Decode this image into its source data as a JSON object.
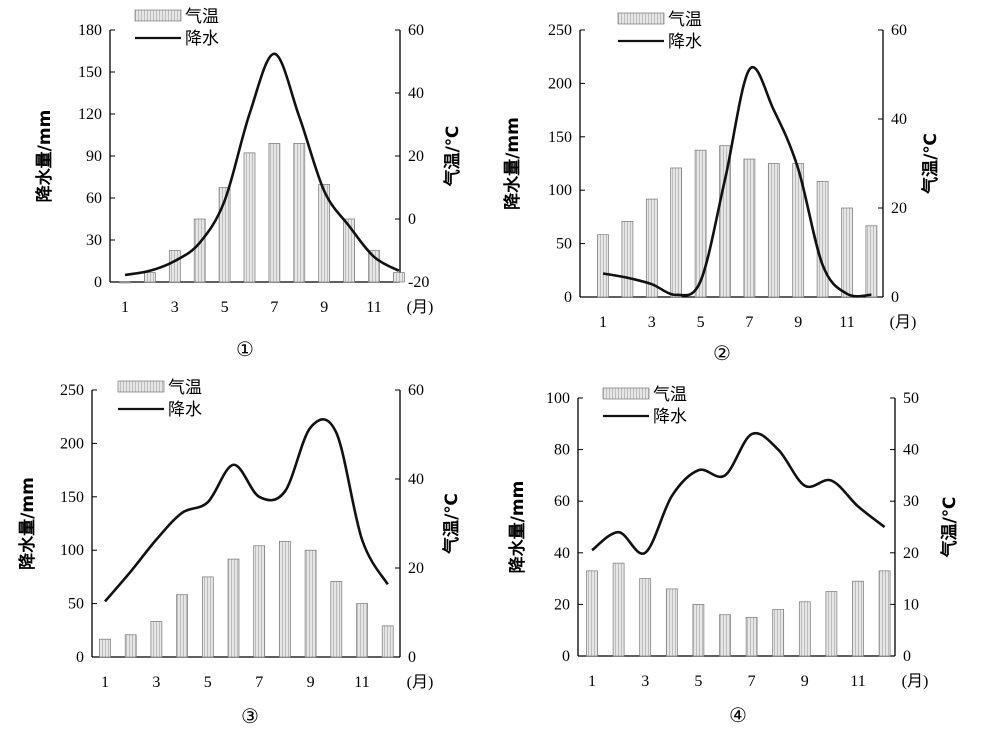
{
  "chart_data": [
    {
      "type": "bar",
      "panel_label": "①",
      "legend": {
        "temp": "气温",
        "precip": "降水",
        "placement": "top-left"
      },
      "ylabel_left": "降水量/mm",
      "ylabel_right": "气温/℃",
      "x_unit_label": "(月)",
      "x_tick_labels": [
        "1",
        "3",
        "5",
        "7",
        "9",
        "11"
      ],
      "left_ticks": [
        "0",
        "30",
        "60",
        "90",
        "120",
        "150",
        "180"
      ],
      "right_ticks": [
        "-20",
        "0",
        "20",
        "40",
        "60"
      ],
      "ylim_left": [
        0,
        180
      ],
      "ylim_right": [
        -20,
        60
      ],
      "months": [
        1,
        2,
        3,
        4,
        5,
        6,
        7,
        8,
        9,
        10,
        11,
        12
      ],
      "series": [
        {
          "name": "气温",
          "kind": "bar",
          "axis": "right",
          "values": [
            -20,
            -17,
            -10,
            0,
            10,
            21,
            24,
            24,
            11,
            0,
            -10,
            -17
          ]
        },
        {
          "name": "降水",
          "kind": "line",
          "axis": "left",
          "values": [
            5,
            8,
            15,
            28,
            58,
            120,
            163,
            118,
            65,
            40,
            18,
            8
          ]
        }
      ]
    },
    {
      "type": "bar",
      "panel_label": "②",
      "legend": {
        "temp": "气温",
        "precip": "降水",
        "placement": "top-left"
      },
      "ylabel_left": "降水量/mm",
      "ylabel_right": "气温/℃",
      "x_unit_label": "(月)",
      "x_tick_labels": [
        "1",
        "3",
        "5",
        "7",
        "9",
        "11"
      ],
      "left_ticks": [
        "0",
        "50",
        "100",
        "150",
        "200",
        "250"
      ],
      "right_ticks": [
        "0",
        "20",
        "40",
        "60"
      ],
      "ylim_left": [
        0,
        250
      ],
      "ylim_right": [
        0,
        60
      ],
      "months": [
        1,
        2,
        3,
        4,
        5,
        6,
        7,
        8,
        9,
        10,
        11,
        12
      ],
      "series": [
        {
          "name": "气温",
          "kind": "bar",
          "axis": "right",
          "values": [
            14,
            17,
            22,
            29,
            33,
            34,
            31,
            30,
            30,
            26,
            20,
            16
          ]
        },
        {
          "name": "降水",
          "kind": "line",
          "axis": "left",
          "values": [
            22,
            18,
            12,
            2,
            15,
            110,
            213,
            175,
            120,
            30,
            3,
            2
          ]
        }
      ]
    },
    {
      "type": "bar",
      "panel_label": "③",
      "legend": {
        "temp": "气温",
        "precip": "降水",
        "placement": "top-left"
      },
      "ylabel_left": "降水量/mm",
      "ylabel_right": "气温/℃",
      "x_unit_label": "(月)",
      "x_tick_labels": [
        "1",
        "3",
        "5",
        "7",
        "9",
        "11"
      ],
      "left_ticks": [
        "0",
        "50",
        "100",
        "150",
        "200",
        "250"
      ],
      "right_ticks": [
        "0",
        "20",
        "40",
        "60"
      ],
      "ylim_left": [
        0,
        250
      ],
      "ylim_right": [
        0,
        60
      ],
      "months": [
        1,
        2,
        3,
        4,
        5,
        6,
        7,
        8,
        9,
        10,
        11,
        12
      ],
      "series": [
        {
          "name": "气温",
          "kind": "bar",
          "axis": "right",
          "values": [
            4,
            5,
            8,
            14,
            18,
            22,
            25,
            26,
            24,
            17,
            12,
            7
          ]
        },
        {
          "name": "降水",
          "kind": "line",
          "axis": "left",
          "values": [
            52,
            80,
            110,
            135,
            145,
            180,
            150,
            155,
            215,
            210,
            110,
            68
          ]
        }
      ]
    },
    {
      "type": "bar",
      "panel_label": "④",
      "legend": {
        "temp": "气温",
        "precip": "降水",
        "placement": "top-left"
      },
      "ylabel_left": "降水量/mm",
      "ylabel_right": "气温/℃",
      "x_unit_label": "(月)",
      "x_tick_labels": [
        "1",
        "3",
        "5",
        "7",
        "9",
        "11"
      ],
      "left_ticks": [
        "0",
        "20",
        "40",
        "60",
        "80",
        "100"
      ],
      "right_ticks": [
        "0",
        "10",
        "20",
        "30",
        "40",
        "50"
      ],
      "ylim_left": [
        0,
        100
      ],
      "ylim_right": [
        0,
        50
      ],
      "months": [
        1,
        2,
        3,
        4,
        5,
        6,
        7,
        8,
        9,
        10,
        11,
        12
      ],
      "series": [
        {
          "name": "气温",
          "kind": "bar",
          "axis": "right",
          "values": [
            16.5,
            18,
            15,
            13,
            10,
            8,
            7.5,
            9,
            10.5,
            12.5,
            14.5,
            16.5
          ]
        },
        {
          "name": "降水",
          "kind": "line",
          "axis": "left",
          "values": [
            41,
            48,
            40,
            62,
            72,
            70,
            86,
            80,
            66,
            68,
            58,
            50
          ]
        }
      ]
    }
  ]
}
